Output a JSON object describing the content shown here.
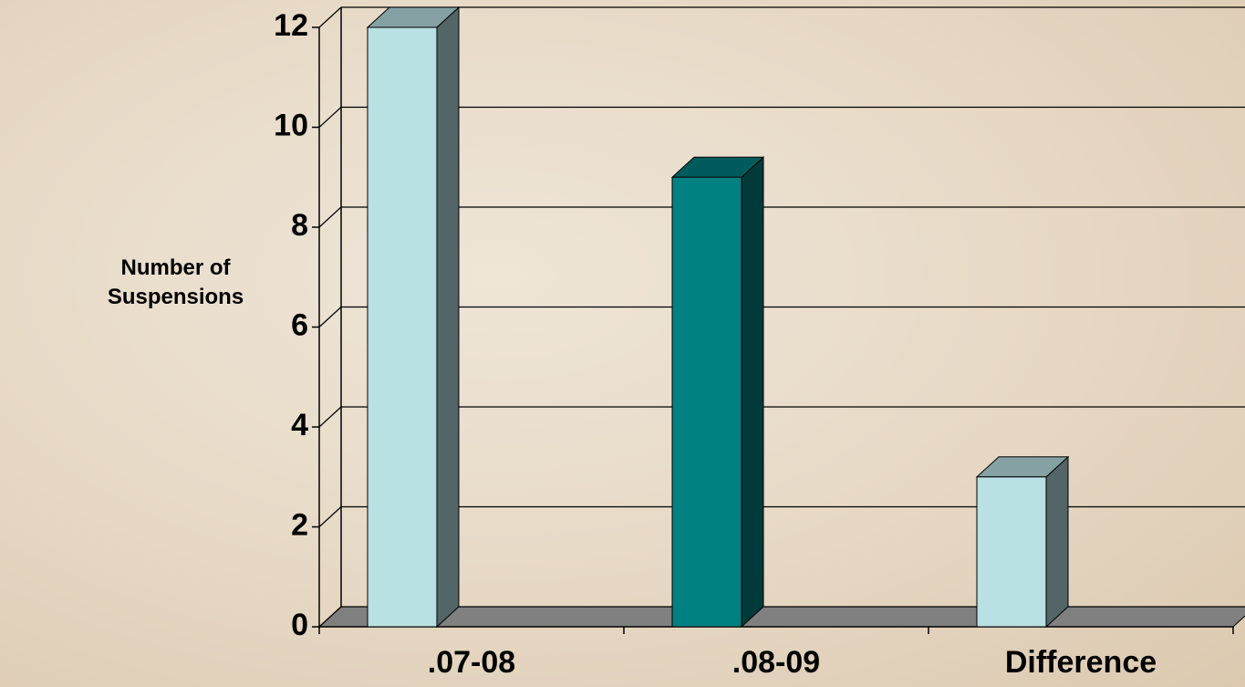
{
  "chart_data": {
    "type": "bar3d",
    "y_label": "Number of Suspensions",
    "categories": [
      ".07-08",
      ".08-09",
      "Difference"
    ],
    "values": [
      12,
      9,
      3
    ],
    "colors": [
      "#b9e0e3",
      "#008080",
      "#b9e0e3"
    ],
    "ylim": [
      0,
      12
    ],
    "yticks": [
      0,
      2,
      4,
      6,
      8,
      10,
      12
    ],
    "grid": true
  }
}
